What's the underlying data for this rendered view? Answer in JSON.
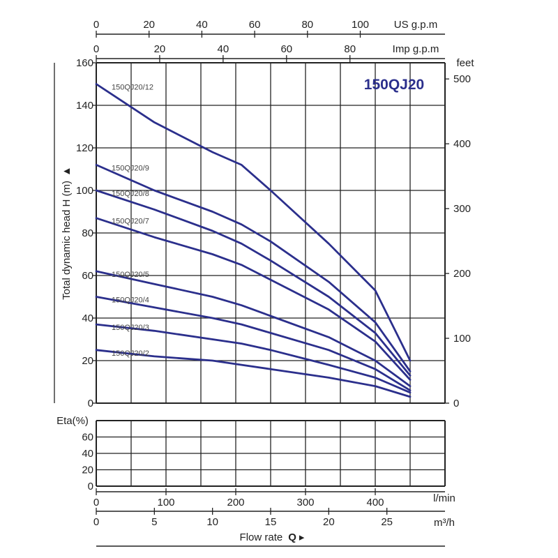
{
  "chart_data": {
    "type": "line",
    "title": "150QJ20",
    "ylabel": "Total dynamic head H (m)",
    "ylabel_arrow": "▲",
    "xlabel": "Flow rate",
    "xlabel_q": "Q",
    "xlabel_arrow": "▸",
    "eta_label": "Eta(%)",
    "x_unit": "m³/h",
    "ylim": [
      0,
      160
    ],
    "xlim_m3h": [
      0,
      30
    ],
    "grid": true,
    "colors": {
      "curve": "#2b2f8c",
      "grid": "#222222"
    },
    "axes": {
      "us_gpm": {
        "unit": "US g.p.m",
        "ticks": [
          "0",
          "20",
          "40",
          "60",
          "80",
          "100"
        ],
        "values": [
          0,
          20,
          40,
          60,
          80,
          100
        ],
        "m3h_per_unit": 0.2271
      },
      "imp_gpm": {
        "unit": "Imp g.p.m",
        "ticks": [
          "0",
          "20",
          "40",
          "60",
          "80"
        ],
        "values": [
          0,
          20,
          40,
          60,
          80
        ],
        "m3h_per_unit": 0.2728
      },
      "lmin": {
        "unit": "l/min",
        "ticks": [
          "0",
          "100",
          "200",
          "300",
          "400"
        ],
        "values": [
          0,
          100,
          200,
          300,
          400
        ],
        "m3h_per_unit": 0.06
      },
      "m3h": {
        "ticks": [
          "0",
          "5",
          "10",
          "15",
          "20",
          "25"
        ],
        "values": [
          0,
          5,
          10,
          15,
          20,
          25
        ]
      },
      "feet": {
        "unit": "feet",
        "ticks": [
          "0",
          "100",
          "200",
          "300",
          "400",
          "500"
        ],
        "values": [
          0,
          100,
          200,
          300,
          400,
          500
        ],
        "m_per_unit": 0.3048
      },
      "head_m": {
        "ticks": [
          "0",
          "20",
          "40",
          "60",
          "80",
          "100",
          "120",
          "140",
          "160"
        ],
        "values": [
          0,
          20,
          40,
          60,
          80,
          100,
          120,
          140,
          160
        ]
      },
      "eta": {
        "ticks": [
          "0",
          "20",
          "40",
          "60"
        ],
        "values": [
          0,
          20,
          40,
          60
        ],
        "ylim": [
          0,
          80
        ]
      }
    },
    "series": [
      {
        "name": "150QJ20/12",
        "x": [
          0,
          5,
          10,
          12.5,
          15,
          20,
          24,
          27
        ],
        "y": [
          150,
          132,
          118,
          112,
          100,
          75,
          53,
          20
        ]
      },
      {
        "name": "150QJ20/9",
        "x": [
          0,
          5,
          10,
          12.5,
          15,
          20,
          24,
          27
        ],
        "y": [
          112,
          100,
          90,
          84,
          76,
          57,
          38,
          15
        ]
      },
      {
        "name": "150QJ20/8",
        "x": [
          0,
          5,
          10,
          12.5,
          15,
          20,
          24,
          27
        ],
        "y": [
          100,
          91,
          81,
          75,
          67,
          50,
          33,
          13
        ]
      },
      {
        "name": "150QJ20/7",
        "x": [
          0,
          5,
          10,
          12.5,
          15,
          20,
          24,
          27
        ],
        "y": [
          87,
          78,
          70,
          65,
          58,
          44,
          29,
          11
        ]
      },
      {
        "name": "150QJ20/5",
        "x": [
          0,
          5,
          10,
          12.5,
          15,
          20,
          24,
          27
        ],
        "y": [
          62,
          56,
          50,
          46,
          41,
          31,
          20,
          8
        ]
      },
      {
        "name": "150QJ20/4",
        "x": [
          0,
          5,
          10,
          12.5,
          15,
          20,
          24,
          27
        ],
        "y": [
          50,
          45,
          40,
          37,
          33,
          25,
          16,
          6
        ]
      },
      {
        "name": "150QJ20/3",
        "x": [
          0,
          5,
          10,
          12.5,
          15,
          20,
          24,
          27
        ],
        "y": [
          37,
          34,
          30,
          28,
          25,
          18,
          12,
          5
        ]
      },
      {
        "name": "150QJ20/2",
        "x": [
          0,
          5,
          10,
          12.5,
          15,
          20,
          24,
          27
        ],
        "y": [
          25,
          22,
          20,
          18,
          16,
          12,
          8,
          3
        ]
      }
    ]
  }
}
